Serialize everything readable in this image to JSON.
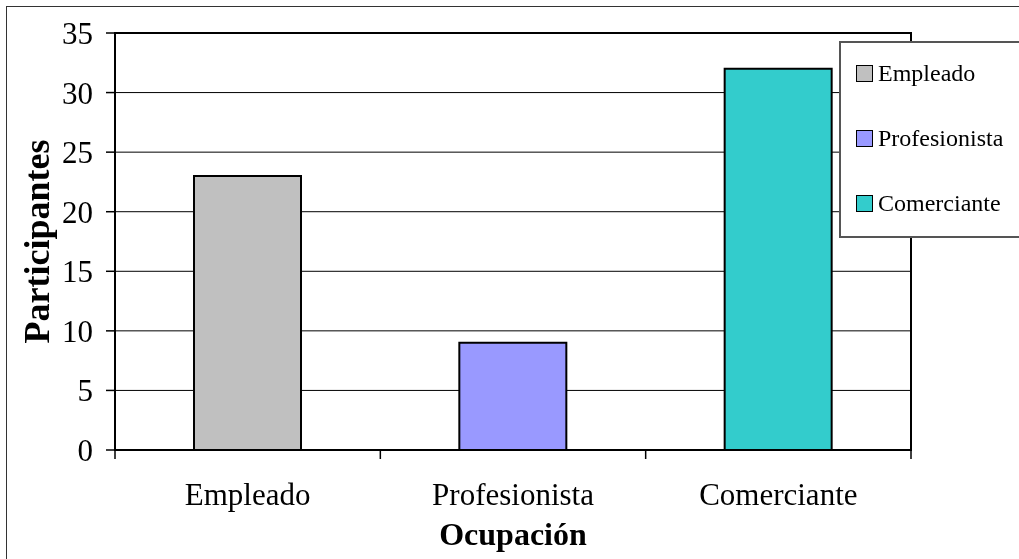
{
  "chart_data": {
    "type": "bar",
    "xlabel": "Ocupación",
    "ylabel": "Participantes",
    "categories": [
      "Empleado",
      "Profesionista",
      "Comerciante"
    ],
    "stacked": true,
    "series": [
      {
        "name": "Empleado",
        "color": "#c0c0c0",
        "values": [
          23,
          null,
          null
        ]
      },
      {
        "name": "Profesionista",
        "color": "#9999ff",
        "values": [
          null,
          9,
          null
        ]
      },
      {
        "name": "Comerciante",
        "color": "#33cccc",
        "values": [
          null,
          null,
          32
        ]
      }
    ],
    "ylim": [
      0,
      35
    ],
    "yticks": [
      0,
      5,
      10,
      15,
      20,
      25,
      30,
      35
    ],
    "grid": "y",
    "legend": "top right"
  }
}
